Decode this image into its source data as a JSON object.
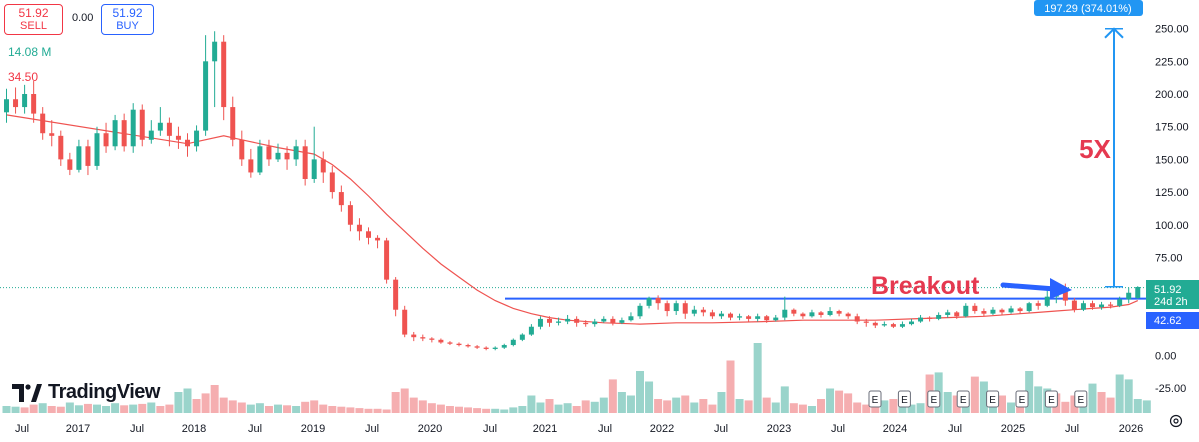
{
  "trade": {
    "sell_price": "51.92",
    "sell_label": "SELL",
    "spread": "0.00",
    "buy_price": "51.92",
    "buy_label": "BUY"
  },
  "legend": {
    "volume": "14.08 M",
    "ma": "34.50"
  },
  "brand": {
    "name": "TradingView"
  },
  "colors": {
    "up": "#22ab94",
    "down": "#ef5350",
    "ma": "#ef5350",
    "accent": "#2962ff",
    "annotation": "#e53950"
  },
  "chart_data": {
    "type": "candlestick",
    "interval": "monthly",
    "x_tick_labels": [
      "Jul",
      "2017",
      "Jul",
      "2018",
      "Jul",
      "2019",
      "Jul",
      "2020",
      "Jul",
      "2021",
      "Jul",
      "2022",
      "Jul",
      "2023",
      "Jul",
      "2024",
      "Jul",
      "2025",
      "Jul",
      "2026"
    ],
    "y_tick_labels": [
      "250.00",
      "225.00",
      "200.00",
      "175.00",
      "150.00",
      "125.00",
      "100.00",
      "75.00",
      "51.92",
      "24d 2h",
      "42.62",
      "0.00",
      "-25.00"
    ],
    "ylim": [
      -35,
      260
    ],
    "last_price": 51.92,
    "countdown": "24d 2h",
    "ma_value": 42.62,
    "ma_legend_value": 34.5,
    "volume_legend": "14.08 M",
    "measure_label": "197.29 (374.01%)",
    "measure_from": 52.6,
    "measure_to": 249.9,
    "breakout_level": 43.5,
    "annotations": [
      {
        "text": "5X"
      },
      {
        "text": "Breakout"
      }
    ],
    "earnings_marker": "E",
    "earnings_count": 8,
    "candles": [
      [
        186,
        196,
        204,
        178
      ],
      [
        196,
        190,
        205,
        185
      ],
      [
        190,
        200,
        207,
        185
      ],
      [
        200,
        185,
        210,
        178
      ],
      [
        185,
        170,
        190,
        165
      ],
      [
        170,
        168,
        180,
        160
      ],
      [
        168,
        150,
        172,
        145
      ],
      [
        150,
        142,
        155,
        138
      ],
      [
        142,
        160,
        165,
        140
      ],
      [
        160,
        145,
        165,
        138
      ],
      [
        145,
        170,
        175,
        142
      ],
      [
        170,
        160,
        178,
        155
      ],
      [
        160,
        180,
        184,
        157
      ],
      [
        180,
        160,
        185,
        156
      ],
      [
        160,
        188,
        193,
        155
      ],
      [
        188,
        165,
        192,
        160
      ],
      [
        165,
        172,
        180,
        162
      ],
      [
        172,
        178,
        190,
        168
      ],
      [
        178,
        168,
        182,
        160
      ],
      [
        168,
        165,
        175,
        158
      ],
      [
        165,
        160,
        170,
        152
      ],
      [
        160,
        172,
        176,
        156
      ],
      [
        172,
        225,
        245,
        168
      ],
      [
        225,
        240,
        248,
        190
      ],
      [
        240,
        190,
        245,
        180
      ],
      [
        190,
        165,
        198,
        160
      ],
      [
        165,
        150,
        172,
        145
      ],
      [
        150,
        140,
        158,
        136
      ],
      [
        140,
        160,
        165,
        138
      ],
      [
        160,
        150,
        165,
        145
      ],
      [
        150,
        155,
        162,
        148
      ],
      [
        155,
        150,
        160,
        142
      ],
      [
        150,
        160,
        165,
        145
      ],
      [
        160,
        135,
        165,
        130
      ],
      [
        135,
        150,
        175,
        132
      ],
      [
        150,
        140,
        156,
        132
      ],
      [
        140,
        125,
        145,
        120
      ],
      [
        125,
        115,
        130,
        110
      ],
      [
        115,
        100,
        118,
        95
      ],
      [
        100,
        95,
        105,
        88
      ],
      [
        95,
        90,
        98,
        85
      ],
      [
        90,
        88,
        92,
        82
      ],
      [
        88,
        58,
        90,
        55
      ],
      [
        58,
        35,
        60,
        30
      ],
      [
        35,
        16,
        38,
        14
      ],
      [
        16,
        14,
        18,
        11
      ],
      [
        14,
        13,
        16,
        11
      ],
      [
        13,
        12,
        14,
        10
      ],
      [
        12,
        10,
        13,
        9
      ],
      [
        10,
        9,
        11,
        8
      ],
      [
        9,
        8,
        10,
        7
      ],
      [
        8,
        7,
        9,
        6
      ],
      [
        7,
        6,
        8,
        5
      ],
      [
        6,
        5,
        7,
        4
      ],
      [
        5,
        6,
        7,
        4
      ],
      [
        6,
        8,
        9,
        5
      ],
      [
        8,
        12,
        13,
        7
      ],
      [
        12,
        16,
        17,
        11
      ],
      [
        16,
        22,
        24,
        15
      ],
      [
        22,
        28,
        30,
        20
      ],
      [
        28,
        25,
        30,
        22
      ],
      [
        25,
        26,
        29,
        23
      ],
      [
        26,
        28,
        31,
        24
      ],
      [
        28,
        25,
        30,
        22
      ],
      [
        25,
        24,
        27,
        22
      ],
      [
        24,
        26,
        28,
        22
      ],
      [
        26,
        28,
        30,
        25
      ],
      [
        28,
        25,
        30,
        23
      ],
      [
        25,
        27,
        29,
        24
      ],
      [
        27,
        30,
        33,
        26
      ],
      [
        30,
        38,
        40,
        28
      ],
      [
        38,
        44,
        45,
        36
      ],
      [
        44,
        40,
        46,
        35
      ],
      [
        40,
        34,
        42,
        30
      ],
      [
        34,
        40,
        42,
        31
      ],
      [
        40,
        32,
        42,
        28
      ],
      [
        32,
        35,
        38,
        30
      ],
      [
        35,
        33,
        37,
        30
      ],
      [
        33,
        30,
        35,
        28
      ],
      [
        30,
        32,
        34,
        28
      ],
      [
        32,
        29,
        33,
        27
      ],
      [
        29,
        30,
        32,
        27
      ],
      [
        30,
        28,
        31,
        26
      ],
      [
        28,
        30,
        32,
        26
      ],
      [
        30,
        27,
        31,
        25
      ],
      [
        27,
        29,
        31,
        26
      ],
      [
        29,
        35,
        45,
        27
      ],
      [
        35,
        32,
        36,
        30
      ],
      [
        32,
        30,
        33,
        28
      ],
      [
        30,
        33,
        35,
        29
      ],
      [
        33,
        31,
        34,
        29
      ],
      [
        31,
        34,
        37,
        30
      ],
      [
        34,
        32,
        35,
        30
      ],
      [
        32,
        30,
        33,
        28
      ],
      [
        30,
        26,
        32,
        24
      ],
      [
        26,
        25,
        28,
        22
      ],
      [
        25,
        23,
        26,
        21
      ],
      [
        23,
        24,
        26,
        22
      ],
      [
        24,
        22,
        25,
        21
      ],
      [
        22,
        24,
        26,
        21
      ],
      [
        24,
        26,
        28,
        23
      ],
      [
        26,
        29,
        31,
        25
      ],
      [
        29,
        28,
        30,
        26
      ],
      [
        28,
        31,
        33,
        27
      ],
      [
        31,
        33,
        35,
        29
      ],
      [
        33,
        30,
        34,
        28
      ],
      [
        30,
        38,
        40,
        29
      ],
      [
        38,
        34,
        40,
        32
      ],
      [
        34,
        32,
        36,
        30
      ],
      [
        32,
        35,
        37,
        31
      ],
      [
        35,
        33,
        36,
        31
      ],
      [
        33,
        36,
        38,
        32
      ],
      [
        36,
        34,
        37,
        32
      ],
      [
        34,
        40,
        41,
        33
      ],
      [
        40,
        38,
        42,
        35
      ],
      [
        38,
        45,
        50,
        37
      ],
      [
        45,
        50,
        52,
        40
      ],
      [
        50,
        42,
        55,
        38
      ],
      [
        42,
        35,
        44,
        33
      ],
      [
        35,
        40,
        42,
        34
      ],
      [
        40,
        37,
        42,
        35
      ],
      [
        37,
        39,
        41,
        35
      ],
      [
        39,
        38,
        41,
        36
      ],
      [
        38,
        43,
        45,
        37
      ],
      [
        43,
        48,
        52,
        40
      ],
      [
        44,
        52.4,
        53,
        43
      ]
    ],
    "ma": [
      [
        0,
        184
      ],
      [
        20,
        162
      ],
      [
        24,
        168
      ],
      [
        26,
        165
      ],
      [
        30,
        159
      ],
      [
        34,
        154
      ],
      [
        36,
        146
      ],
      [
        38,
        135
      ],
      [
        40,
        122
      ],
      [
        42,
        108
      ],
      [
        44,
        95
      ],
      [
        46,
        82
      ],
      [
        48,
        70
      ],
      [
        50,
        60
      ],
      [
        52,
        50
      ],
      [
        54,
        42
      ],
      [
        56,
        36
      ],
      [
        58,
        32
      ],
      [
        60,
        29
      ],
      [
        62,
        27
      ],
      [
        66,
        25
      ],
      [
        70,
        24
      ],
      [
        74,
        25
      ],
      [
        78,
        25
      ],
      [
        84,
        26
      ],
      [
        88,
        27
      ],
      [
        92,
        27
      ],
      [
        96,
        27
      ],
      [
        100,
        28
      ],
      [
        104,
        29
      ],
      [
        108,
        30
      ],
      [
        112,
        32
      ],
      [
        114,
        33
      ],
      [
        116,
        34
      ],
      [
        118,
        35
      ],
      [
        120,
        36
      ],
      [
        122,
        37
      ],
      [
        124,
        39
      ],
      [
        125,
        42
      ]
    ],
    "volume_scale": [
      0,
      100
    ],
    "volume": [
      10,
      9,
      8,
      12,
      14,
      10,
      9,
      15,
      11,
      13,
      12,
      10,
      14,
      11,
      12,
      13,
      15,
      10,
      12,
      30,
      35,
      20,
      28,
      40,
      22,
      18,
      15,
      12,
      14,
      10,
      12,
      11,
      10,
      16,
      18,
      12,
      10,
      9,
      8,
      7,
      6,
      6,
      5,
      30,
      35,
      22,
      18,
      14,
      12,
      10,
      9,
      8,
      7,
      6,
      6,
      5,
      8,
      10,
      25,
      15,
      20,
      12,
      14,
      10,
      18,
      16,
      22,
      48,
      30,
      25,
      60,
      45,
      20,
      18,
      22,
      25,
      15,
      20,
      12,
      30,
      75,
      20,
      18,
      100,
      22,
      15,
      38,
      14,
      12,
      10,
      20,
      35,
      32,
      28,
      15,
      12,
      10,
      18,
      20,
      25,
      12,
      14,
      55,
      58,
      30,
      25,
      20,
      52,
      45,
      18,
      25,
      15,
      22,
      60,
      38,
      35,
      28,
      16,
      25,
      18,
      42,
      30,
      22,
      55,
      48,
      20,
      18
    ],
    "volume_up": [
      1,
      1,
      0,
      0,
      1,
      0,
      0,
      1,
      1,
      0,
      1,
      1,
      1,
      0,
      1,
      0,
      1,
      0,
      0,
      1,
      1,
      0,
      0,
      0,
      0,
      0,
      0,
      1,
      1,
      0,
      1,
      0,
      1,
      0,
      0,
      0,
      0,
      0,
      0,
      0,
      0,
      0,
      0,
      0,
      0,
      0,
      0,
      0,
      0,
      0,
      0,
      0,
      0,
      0,
      1,
      1,
      1,
      1,
      1,
      1,
      0,
      1,
      1,
      0,
      0,
      1,
      1,
      0,
      1,
      1,
      1,
      1,
      0,
      0,
      1,
      0,
      1,
      0,
      0,
      1,
      0,
      1,
      0,
      1,
      0,
      1,
      1,
      0,
      0,
      1,
      0,
      1,
      0,
      0,
      0,
      0,
      0,
      1,
      0,
      1,
      1,
      1,
      0,
      1,
      1,
      0,
      1,
      0,
      1,
      1,
      0,
      1,
      0,
      1,
      1,
      1,
      0,
      0,
      0,
      1,
      1,
      0,
      0,
      1,
      1,
      1,
      1
    ]
  }
}
